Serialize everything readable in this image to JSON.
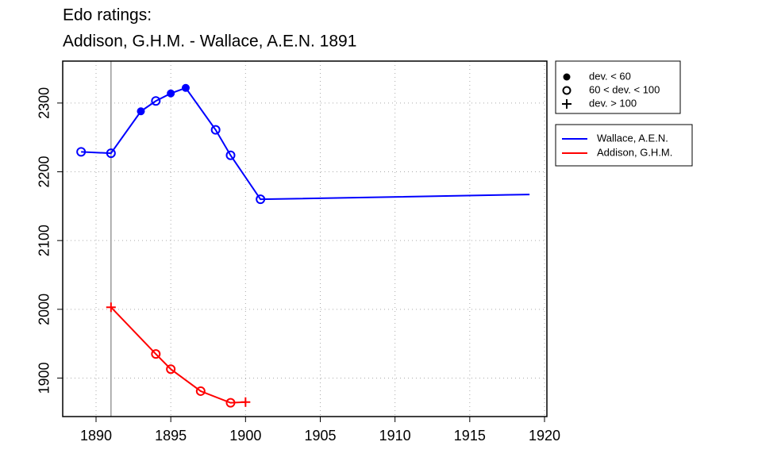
{
  "chart_data": {
    "type": "line",
    "title": "Edo ratings:",
    "subtitle": "Addison, G.H.M. - Wallace, A.E.N. 1891",
    "x_wallace": [
      1889,
      1891,
      1893,
      1894,
      1895,
      1896,
      1898,
      1899,
      1901,
      1919
    ],
    "x_addison": [
      1891,
      1894,
      1895,
      1897,
      1899,
      1900
    ],
    "series": [
      {
        "name": "Wallace, A.E.N.",
        "color": "#0000ff",
        "x_key": "x_wallace",
        "values": [
          2229,
          2227,
          2288,
          2303,
          2314,
          2322,
          2261,
          2224,
          2160,
          2167
        ],
        "markers": [
          "open",
          "open",
          "filled",
          "open",
          "filled",
          "filled",
          "open",
          "open",
          "open",
          null
        ]
      },
      {
        "name": "Addison, G.H.M.",
        "color": "#ff0000",
        "x_key": "x_addison",
        "values": [
          2003,
          1935,
          1913,
          1881,
          1864,
          1865
        ],
        "markers": [
          "plus",
          "open",
          "open",
          "open",
          "open",
          "plus"
        ]
      }
    ],
    "marker_legend": [
      {
        "label": "dev. < 60",
        "marker": "filled"
      },
      {
        "label": "60 < dev. < 100",
        "marker": "open"
      },
      {
        "label": "dev. > 100",
        "marker": "plus"
      }
    ],
    "vline": 1891,
    "vline_color": "#999999",
    "xlim": [
      1887.77,
      1920.16
    ],
    "ylim": [
      1844,
      2361
    ],
    "xticks": [
      1890,
      1895,
      1900,
      1905,
      1910,
      1915,
      1920
    ],
    "yticks": [
      1900,
      2000,
      2100,
      2200,
      2300
    ],
    "grid": true
  }
}
